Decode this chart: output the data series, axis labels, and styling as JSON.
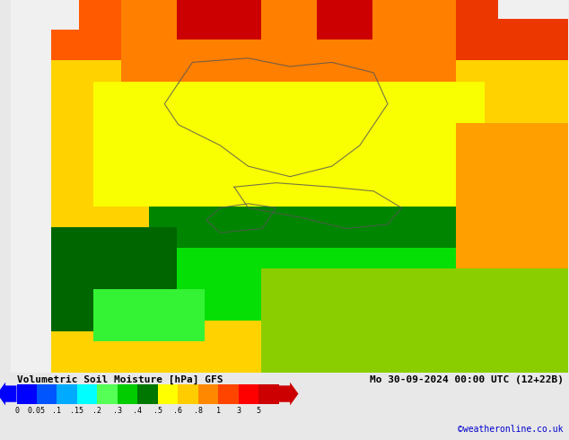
{
  "title_left": "Volumetric Soil Moisture [hPa] GFS",
  "title_right": "Mo 30-09-2024 00:00 UTC (12+22B)",
  "credit": "©weatheronline.co.uk",
  "colorbar_values": [
    0,
    0.05,
    0.1,
    0.15,
    0.2,
    0.3,
    0.4,
    0.5,
    0.6,
    0.8,
    1,
    3,
    5
  ],
  "colorbar_labels": [
    "0",
    "0.05",
    ".1",
    ".15",
    ".2",
    ".3",
    ".4",
    ".5",
    ".6",
    ".8",
    "1",
    "3",
    "5"
  ],
  "colorbar_colors": [
    "#0000FF",
    "#0055FF",
    "#00AAFF",
    "#00FFFF",
    "#55FF55",
    "#00CC00",
    "#007700",
    "#FFFF00",
    "#FFCC00",
    "#FF8800",
    "#FF4400",
    "#FF0000",
    "#CC0000"
  ],
  "bg_color": "#e8e8e8",
  "text_color": "#000000",
  "credit_color": "#0000CC",
  "map_bg": "#f0f0f0",
  "bottom_bar_bg": "#d0d0d0",
  "fig_width": 6.34,
  "fig_height": 4.9,
  "dpi": 100
}
